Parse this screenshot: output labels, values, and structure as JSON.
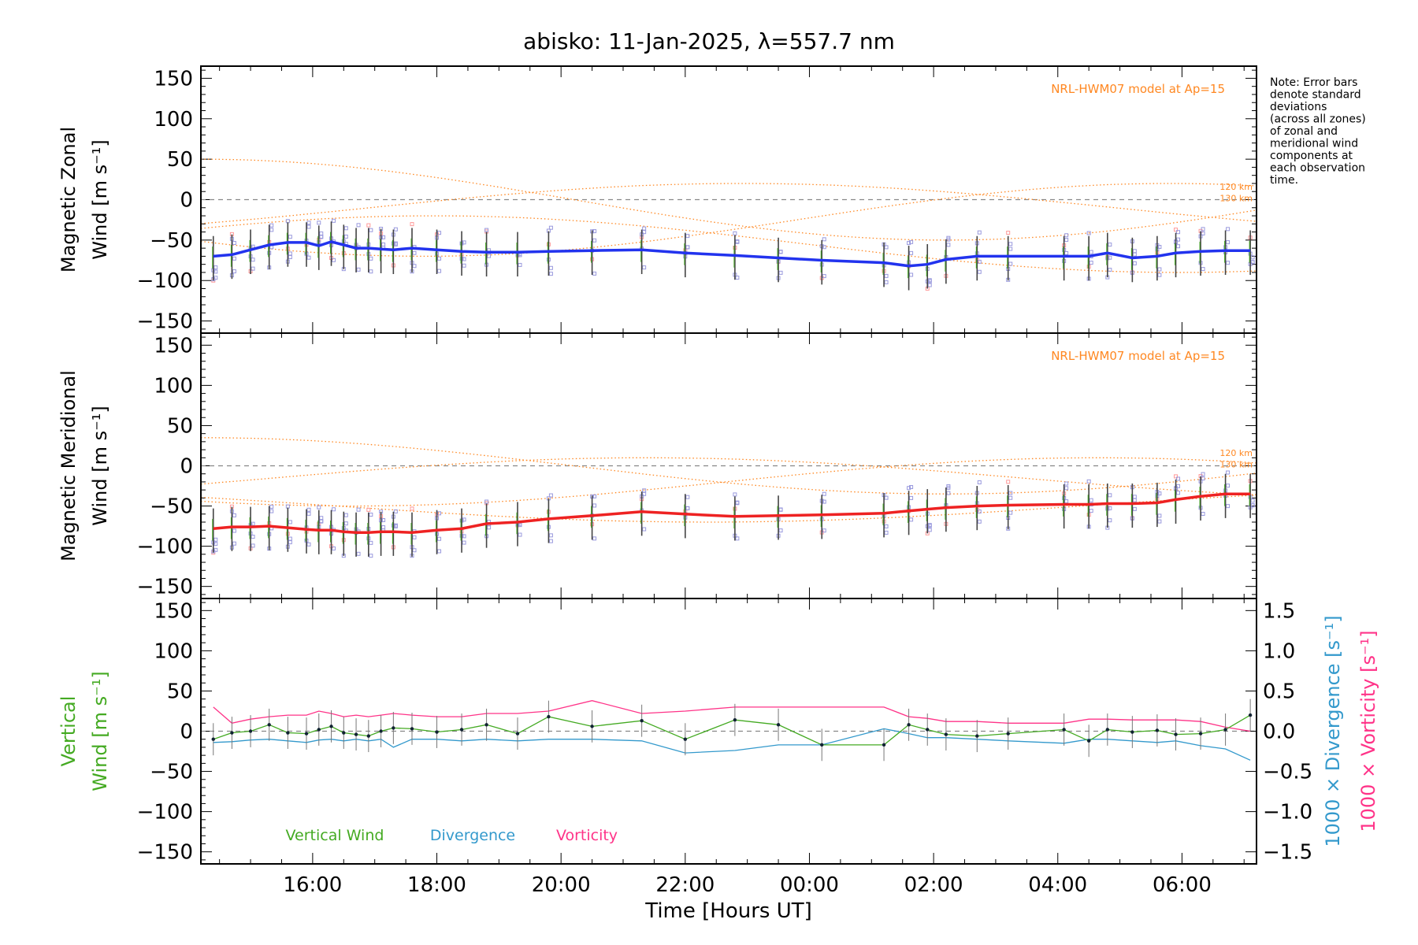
{
  "title": "abisko: 11-Jan-2025, λ=557.7 nm",
  "note_lines": [
    "Note: Error bars",
    "denote standard",
    "deviations",
    "(across all zones)",
    "of zonal and",
    "meridional wind",
    "components at",
    "each observation",
    "time."
  ],
  "colors": {
    "zonal": "#2233ee",
    "meridional": "#ee2222",
    "vertical": "#44aa22",
    "divergence": "#3399cc",
    "vorticity": "#ff3388",
    "model": "#ff8822",
    "scatter": "#9999dd",
    "errorbar": "#444444"
  },
  "chart_data": [
    {
      "type": "line",
      "panel": "zonal",
      "ylabel_line1": "Magnetic Zonal",
      "ylabel_line2": "Wind",
      "ylabel_unit": "[m s⁻¹]",
      "ylim": [
        -165,
        165
      ],
      "yticks": [
        150,
        100,
        50,
        0,
        -50,
        -100,
        -150
      ],
      "model_label": "NRL-HWM07 model at Ap=15",
      "model_alt_labels": [
        "120 km",
        "130 km"
      ],
      "series": [
        {
          "x": [
            14.4,
            14.7,
            15.0,
            15.3,
            15.6,
            15.9,
            16.1,
            16.3,
            16.5,
            16.7,
            16.9,
            17.1,
            17.3,
            17.6,
            18.0,
            18.4,
            18.8,
            19.3,
            19.8,
            20.5,
            21.3,
            22.0,
            22.8,
            23.5,
            24.2,
            25.2,
            25.6,
            25.9,
            26.2,
            26.7,
            27.2,
            28.1,
            28.5,
            28.8,
            29.2,
            29.6,
            29.9,
            30.3,
            30.7,
            31.1
          ],
          "y": [
            -70,
            -68,
            -62,
            -56,
            -53,
            -53,
            -57,
            -52,
            -56,
            -60,
            -60,
            -61,
            -62,
            -60,
            -62,
            -64,
            -65,
            -65,
            -64,
            -63,
            -62,
            -66,
            -69,
            -72,
            -75,
            -78,
            -82,
            -80,
            -74,
            -70,
            -70,
            -70,
            -70,
            -66,
            -72,
            -70,
            -66,
            -64,
            -63,
            -63
          ]
        }
      ]
    },
    {
      "type": "line",
      "panel": "meridional",
      "ylabel_line1": "Magnetic Meridional",
      "ylabel_line2": "Wind",
      "ylabel_unit": "[m s⁻¹]",
      "ylim": [
        -165,
        165
      ],
      "yticks": [
        150,
        100,
        50,
        0,
        -50,
        -100,
        -150
      ],
      "model_label": "NRL-HWM07 model at Ap=15",
      "model_alt_labels": [
        "120 km",
        "130 km"
      ],
      "series": [
        {
          "x": [
            14.4,
            14.7,
            15.0,
            15.3,
            15.6,
            15.9,
            16.1,
            16.3,
            16.5,
            16.7,
            16.9,
            17.1,
            17.3,
            17.6,
            18.0,
            18.4,
            18.8,
            19.3,
            19.8,
            20.5,
            21.3,
            22.0,
            22.8,
            23.5,
            24.2,
            25.2,
            25.6,
            25.9,
            26.2,
            26.7,
            27.2,
            28.1,
            28.5,
            28.8,
            29.2,
            29.6,
            29.9,
            30.3,
            30.7,
            31.1
          ],
          "y": [
            -78,
            -76,
            -76,
            -75,
            -77,
            -79,
            -80,
            -80,
            -82,
            -83,
            -83,
            -82,
            -82,
            -83,
            -80,
            -78,
            -72,
            -70,
            -66,
            -62,
            -57,
            -60,
            -63,
            -62,
            -61,
            -59,
            -56,
            -54,
            -52,
            -50,
            -49,
            -48,
            -48,
            -47,
            -47,
            -46,
            -42,
            -38,
            -35,
            -35
          ]
        }
      ]
    },
    {
      "type": "line",
      "panel": "vertical",
      "ylabel_line1": "Vertical",
      "ylabel_line2": "Wind",
      "ylabel_unit": "[m s⁻¹]",
      "ylim": [
        -165,
        165
      ],
      "yticks": [
        150,
        100,
        50,
        0,
        -50,
        -100,
        -150
      ],
      "y2_label_div": "1000 × Divergence [s⁻¹]",
      "y2_label_vort": "1000 × Vorticity [s⁻¹]",
      "y2lim": [
        -1.65,
        1.65
      ],
      "y2ticks": [
        1.5,
        1.0,
        0.5,
        0.0,
        -0.5,
        -1.0,
        -1.5
      ],
      "legend": [
        "Vertical Wind",
        "Divergence",
        "Vorticity"
      ],
      "series": [
        {
          "name": "Vertical Wind",
          "x": [
            14.4,
            14.7,
            15.0,
            15.3,
            15.6,
            15.9,
            16.1,
            16.3,
            16.5,
            16.7,
            16.9,
            17.1,
            17.3,
            17.6,
            18.0,
            18.4,
            18.8,
            19.3,
            19.8,
            20.5,
            21.3,
            22.0,
            22.8,
            23.5,
            24.2,
            25.2,
            25.6,
            25.9,
            26.2,
            26.7,
            27.2,
            28.1,
            28.5,
            28.8,
            29.2,
            29.6,
            29.9,
            30.3,
            30.7,
            31.1
          ],
          "y": [
            -10,
            -2,
            0,
            8,
            -2,
            -3,
            2,
            6,
            -2,
            -4,
            -6,
            0,
            4,
            3,
            -1,
            2,
            8,
            -3,
            18,
            6,
            13,
            -10,
            14,
            8,
            -17,
            -17,
            8,
            2,
            -4,
            -6,
            -3,
            2,
            -12,
            2,
            -1,
            1,
            -4,
            -3,
            2,
            20
          ]
        },
        {
          "name": "Divergence",
          "x": [
            14.4,
            14.7,
            15.0,
            15.3,
            15.6,
            15.9,
            16.1,
            16.3,
            16.5,
            16.7,
            16.9,
            17.1,
            17.3,
            17.6,
            18.0,
            18.4,
            18.8,
            19.3,
            19.8,
            20.5,
            21.3,
            22.0,
            22.8,
            23.5,
            24.2,
            25.2,
            25.6,
            25.9,
            26.2,
            26.7,
            27.2,
            28.1,
            28.5,
            28.8,
            29.2,
            29.6,
            29.9,
            30.3,
            30.7,
            31.1
          ],
          "y": [
            -0.14,
            -0.13,
            -0.11,
            -0.1,
            -0.12,
            -0.14,
            -0.11,
            -0.1,
            -0.12,
            -0.1,
            -0.12,
            -0.1,
            -0.2,
            -0.1,
            -0.1,
            -0.12,
            -0.1,
            -0.12,
            -0.1,
            -0.1,
            -0.12,
            -0.27,
            -0.24,
            -0.17,
            -0.17,
            0.03,
            -0.03,
            -0.08,
            -0.08,
            -0.1,
            -0.12,
            -0.15,
            -0.1,
            -0.1,
            -0.12,
            -0.14,
            -0.12,
            -0.18,
            -0.22,
            -0.36
          ]
        },
        {
          "name": "Vorticity",
          "x": [
            14.4,
            14.7,
            15.0,
            15.3,
            15.6,
            15.9,
            16.1,
            16.3,
            16.5,
            16.7,
            16.9,
            17.1,
            17.3,
            17.6,
            18.0,
            18.4,
            18.8,
            19.3,
            19.8,
            20.5,
            21.3,
            22.0,
            22.8,
            23.5,
            24.2,
            25.2,
            25.6,
            25.9,
            26.2,
            26.7,
            27.2,
            28.1,
            28.5,
            28.8,
            29.2,
            29.6,
            29.9,
            30.3,
            30.7,
            31.1
          ],
          "y": [
            0.3,
            0.1,
            0.15,
            0.18,
            0.2,
            0.2,
            0.25,
            0.22,
            0.18,
            0.2,
            0.18,
            0.2,
            0.22,
            0.2,
            0.18,
            0.18,
            0.22,
            0.22,
            0.25,
            0.38,
            0.22,
            0.25,
            0.3,
            0.3,
            0.3,
            0.3,
            0.18,
            0.16,
            0.12,
            0.12,
            0.1,
            0.1,
            0.15,
            0.15,
            0.14,
            0.14,
            0.14,
            0.12,
            0.05,
            0.0
          ]
        }
      ]
    }
  ],
  "xaxis": {
    "label": "Time [Hours UT]",
    "xlim": [
      14.2,
      31.2
    ],
    "ticks": [
      16,
      18,
      20,
      22,
      24,
      26,
      28,
      30
    ],
    "tick_labels": [
      "16:00",
      "18:00",
      "20:00",
      "22:00",
      "00:00",
      "02:00",
      "04:00",
      "06:00"
    ]
  }
}
